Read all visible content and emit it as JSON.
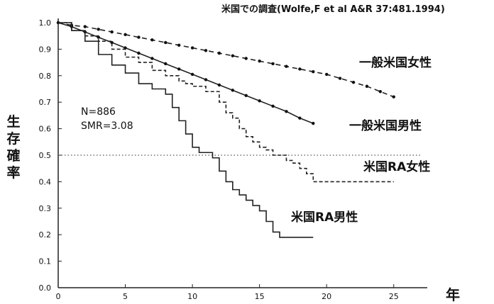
{
  "source_note": "米国での調査(Wolfe,F et al A&R 37:481.1994)",
  "y_axis_label": "生存確率",
  "x_axis_unit": "年",
  "stats": {
    "n": "N=886",
    "smr": "SMR=3.08"
  },
  "chart_data": {
    "type": "line",
    "title": "",
    "xlim": [
      0,
      27.5
    ],
    "ylim": [
      0,
      1.0
    ],
    "x_ticks": [
      0,
      5,
      10,
      15,
      20,
      25
    ],
    "y_ticks": [
      0.0,
      0.1,
      0.2,
      0.3,
      0.4,
      0.5,
      0.6,
      0.7,
      0.8,
      0.9,
      1.0
    ],
    "y_tick_labels": [
      "0.0",
      "0.1",
      "0.2",
      "0.3",
      "0.4",
      "0.5",
      "0.6",
      "0.7",
      "0.8",
      "0.9",
      "1.0"
    ],
    "reference_line": {
      "y": 0.5,
      "style": "dotted"
    },
    "series": [
      {
        "name": "一般米国女性",
        "style": "dashed-dots",
        "x": [
          0,
          1,
          2,
          3,
          4,
          5,
          6,
          7,
          8,
          9,
          10,
          11,
          12,
          13,
          14,
          15,
          16,
          17,
          18,
          19,
          20,
          21,
          22,
          23,
          24,
          25
        ],
        "y": [
          1.0,
          0.99,
          0.985,
          0.975,
          0.965,
          0.955,
          0.945,
          0.935,
          0.925,
          0.915,
          0.905,
          0.895,
          0.885,
          0.875,
          0.865,
          0.855,
          0.845,
          0.835,
          0.825,
          0.815,
          0.805,
          0.79,
          0.775,
          0.76,
          0.74,
          0.72
        ]
      },
      {
        "name": "一般米国男性",
        "style": "solid-dots",
        "x": [
          0,
          1,
          2,
          3,
          4,
          5,
          6,
          7,
          8,
          9,
          10,
          11,
          12,
          13,
          14,
          15,
          16,
          17,
          18,
          19
        ],
        "y": [
          1.0,
          0.985,
          0.965,
          0.945,
          0.925,
          0.905,
          0.885,
          0.865,
          0.845,
          0.825,
          0.805,
          0.785,
          0.765,
          0.745,
          0.725,
          0.705,
          0.685,
          0.665,
          0.64,
          0.62
        ]
      },
      {
        "name": "米国RA女性",
        "style": "dashed-step",
        "x": [
          0,
          1,
          2,
          3,
          4,
          5,
          6,
          7,
          8,
          8.5,
          9,
          9.5,
          10,
          10.5,
          11,
          11.5,
          12,
          12.5,
          13,
          13.5,
          14,
          14.5,
          15,
          15.5,
          16,
          16.5,
          17,
          17.5,
          18,
          18.5,
          19,
          20,
          21,
          22,
          23,
          24,
          25
        ],
        "y": [
          1.0,
          0.97,
          0.95,
          0.93,
          0.9,
          0.87,
          0.85,
          0.82,
          0.8,
          0.8,
          0.78,
          0.77,
          0.76,
          0.76,
          0.74,
          0.74,
          0.7,
          0.66,
          0.64,
          0.6,
          0.57,
          0.55,
          0.53,
          0.52,
          0.5,
          0.5,
          0.48,
          0.47,
          0.45,
          0.43,
          0.4,
          0.4,
          0.4,
          0.4,
          0.4,
          0.4,
          0.4
        ]
      },
      {
        "name": "米国RA男性",
        "style": "solid-step",
        "x": [
          0,
          1,
          2,
          3,
          4,
          5,
          6,
          7,
          8,
          8.5,
          9,
          9.5,
          10,
          10.5,
          11,
          11.5,
          12,
          12.5,
          13,
          13.5,
          14,
          14.5,
          15,
          15.5,
          16,
          16.5,
          17,
          17.5,
          18,
          18.5,
          19
        ],
        "y": [
          1.0,
          0.97,
          0.93,
          0.88,
          0.84,
          0.81,
          0.77,
          0.75,
          0.73,
          0.68,
          0.63,
          0.58,
          0.53,
          0.51,
          0.51,
          0.49,
          0.44,
          0.4,
          0.37,
          0.35,
          0.33,
          0.31,
          0.29,
          0.25,
          0.21,
          0.19,
          0.19,
          0.19,
          0.19,
          0.19,
          0.19
        ]
      }
    ]
  }
}
